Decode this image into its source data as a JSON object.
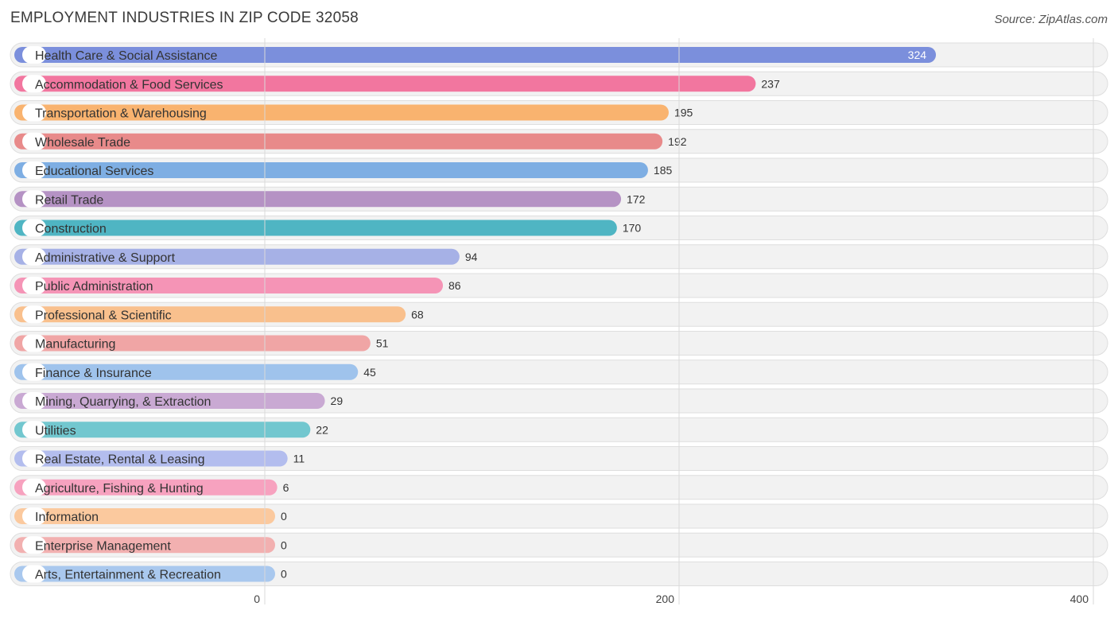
{
  "header": {
    "title": "EMPLOYMENT INDUSTRIES IN ZIP CODE 32058",
    "source": "Source: ZipAtlas.com"
  },
  "chart_data": {
    "type": "bar",
    "orientation": "horizontal",
    "title": "EMPLOYMENT INDUSTRIES IN ZIP CODE 32058",
    "xlabel": "",
    "ylabel": "",
    "xlim": [
      0,
      400
    ],
    "xticks": [
      0,
      200,
      400
    ],
    "grid": true,
    "categories": [
      "Health Care & Social Assistance",
      "Accommodation & Food Services",
      "Transportation & Warehousing",
      "Wholesale Trade",
      "Educational Services",
      "Retail Trade",
      "Construction",
      "Administrative & Support",
      "Public Administration",
      "Professional & Scientific",
      "Manufacturing",
      "Finance & Insurance",
      "Mining, Quarrying, & Extraction",
      "Utilities",
      "Real Estate, Rental & Leasing",
      "Agriculture, Fishing & Hunting",
      "Information",
      "Enterprise Management",
      "Arts, Entertainment & Recreation"
    ],
    "values": [
      324,
      237,
      195,
      192,
      185,
      172,
      170,
      94,
      86,
      68,
      51,
      45,
      29,
      22,
      11,
      6,
      0,
      0,
      0
    ],
    "colors": [
      "#7b8fdc",
      "#f2769f",
      "#f9b36f",
      "#e88a8a",
      "#7eaee3",
      "#b592c4",
      "#4fb5c3",
      "#a6b1e6",
      "#f594b6",
      "#f9c08d",
      "#f0a5a5",
      "#9fc3ec",
      "#c9a9d3",
      "#72c7cf",
      "#b3bdee",
      "#f7a2bf",
      "#fbc99e",
      "#f2b0b0",
      "#a9c8ee"
    ]
  }
}
